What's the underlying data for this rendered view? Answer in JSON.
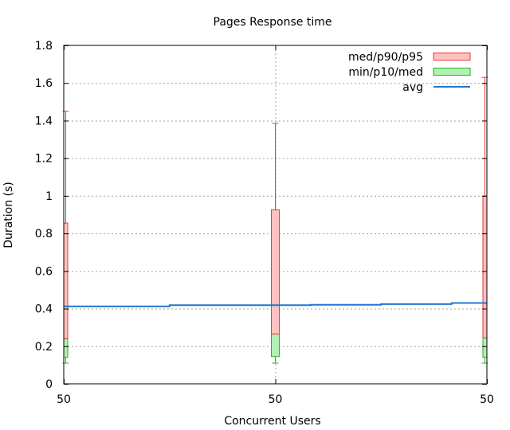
{
  "chart_data": {
    "type": "bar",
    "title": "Pages Response time",
    "xlabel": "Concurrent Users",
    "ylabel": "Duration (s)",
    "ylim": [
      0,
      1.8
    ],
    "y_ticks": [
      "0",
      "0.2",
      "0.4",
      "0.6",
      "0.8",
      "1",
      "1.2",
      "1.4",
      "1.6",
      "1.8"
    ],
    "x_ticks": [
      "50",
      "50",
      "50"
    ],
    "grid": true,
    "legend_position": "top-right",
    "colors": {
      "upper_fill": "#ffc0c0",
      "upper_stroke": "#e8393c",
      "lower_fill": "#b3f0b3",
      "lower_stroke": "#22b322",
      "avg_line": "#1f78d1",
      "grid": "#a0a0a0"
    },
    "legend": [
      {
        "label": "med/p90/p95",
        "kind": "upper"
      },
      {
        "label": "min/p10/med",
        "kind": "lower"
      },
      {
        "label": "avg",
        "kind": "avg"
      }
    ],
    "boxes": [
      {
        "x_index": 0,
        "min": 0.11,
        "p10": 0.14,
        "med": 0.24,
        "p90": 0.855,
        "p95": 1.45
      },
      {
        "x_index": 1,
        "min": 0.11,
        "p10": 0.145,
        "med": 0.265,
        "p90": 0.925,
        "p95": 1.385
      },
      {
        "x_index": 2,
        "min": 0.11,
        "p10": 0.14,
        "med": 0.245,
        "p90": 1.0,
        "p95": 1.63
      }
    ],
    "avg_steps": [
      {
        "x_start": 0.0,
        "x_end": 0.5,
        "value": 0.412
      },
      {
        "x_start": 0.5,
        "x_end": 1.167,
        "value": 0.418
      },
      {
        "x_start": 1.167,
        "x_end": 1.5,
        "value": 0.42
      },
      {
        "x_start": 1.5,
        "x_end": 1.833,
        "value": 0.424
      },
      {
        "x_start": 1.833,
        "x_end": 2.0,
        "value": 0.43
      }
    ]
  }
}
